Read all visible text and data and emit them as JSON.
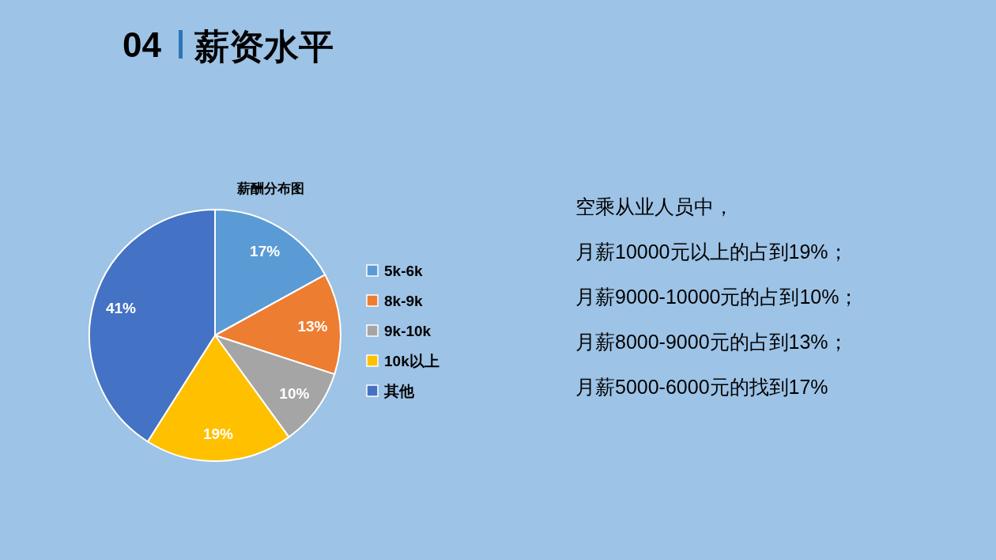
{
  "chart_data": {
    "type": "pie",
    "title": "薪酬分布图",
    "categories": [
      "5k-6k",
      "8k-9k",
      "9k-10k",
      "10k以上",
      "其他"
    ],
    "values": [
      17,
      13,
      10,
      19,
      41
    ],
    "colors": [
      "#5b9bd5",
      "#ed7d31",
      "#a5a5a5",
      "#ffc000",
      "#4472c4"
    ],
    "value_labels": [
      "17%",
      "13%",
      "10%",
      "19%",
      "41%"
    ],
    "legend": "right",
    "annotations": [
      "04",
      "薪资水平",
      "空乘从业人员中，",
      "月薪10000元以上的占到19%；",
      "月薪9000-10000元的占到10%；",
      "月薪8000-9000元的占到13%；",
      "月薪5000-6000元的找到17%"
    ]
  }
}
